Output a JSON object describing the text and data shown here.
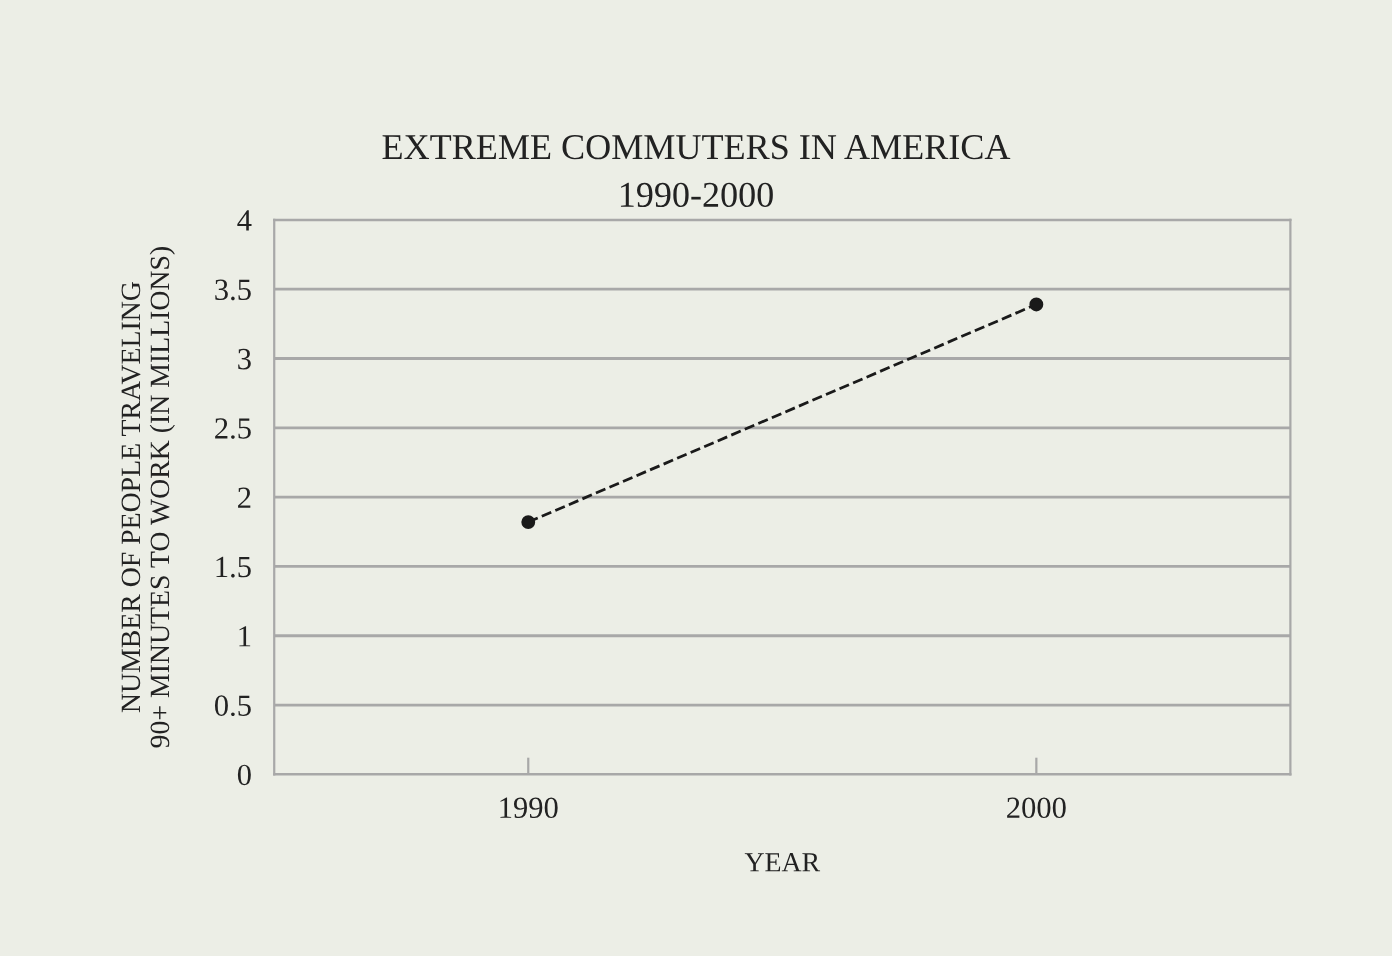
{
  "chart_data": {
    "type": "line",
    "title": "EXTREME COMMUTERS IN AMERICA\n1990-2000",
    "xlabel": "YEAR",
    "ylabel": "NUMBER OF PEOPLE TRAVELING\n90+ MINUTES TO WORK (IN MILLIONS)",
    "categories": [
      "1990",
      "2000"
    ],
    "series": [
      {
        "color": "#1a1a1a",
        "values": [
          1.82,
          3.39
        ]
      }
    ],
    "ylim": [
      0,
      4
    ],
    "yticks": [
      0,
      0.5,
      1,
      1.5,
      2,
      2.5,
      3,
      3.5,
      4
    ],
    "grid": "y",
    "marker": "circle",
    "line_style": "dashed",
    "legend": false
  }
}
